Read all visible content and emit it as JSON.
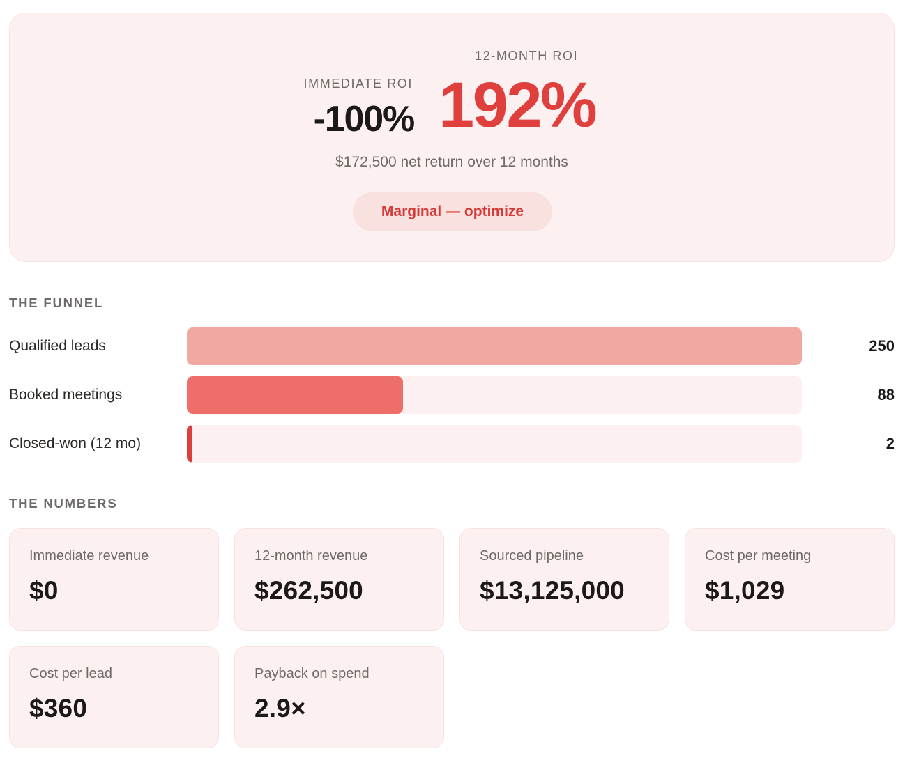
{
  "roi": {
    "immediate_label": "IMMEDIATE ROI",
    "immediate_value": "-100%",
    "twelve_month_label": "12-MONTH ROI",
    "twelve_month_value": "192%",
    "net_return_text": "$172,500 net return over 12 months",
    "status_badge": "Marginal — optimize",
    "accent_color": "#e0403d"
  },
  "funnel": {
    "heading": "THE FUNNEL",
    "max_value": 250,
    "rows": [
      {
        "label": "Qualified leads",
        "value": "250",
        "fraction": 1.0,
        "color": "#f1a7a2"
      },
      {
        "label": "Booked meetings",
        "value": "88",
        "fraction": 0.352,
        "color": "#ee6f69"
      },
      {
        "label": "Closed-won (12 mo)",
        "value": "2",
        "fraction": 0.008,
        "color": "#d9403b"
      }
    ]
  },
  "numbers": {
    "heading": "THE NUMBERS",
    "cards": [
      {
        "label": "Immediate revenue",
        "value": "$0"
      },
      {
        "label": "12-month revenue",
        "value": "$262,500"
      },
      {
        "label": "Sourced pipeline",
        "value": "$13,125,000"
      },
      {
        "label": "Cost per meeting",
        "value": "$1,029"
      },
      {
        "label": "Cost per lead",
        "value": "$360"
      },
      {
        "label": "Payback on spend",
        "value": "2.9×"
      }
    ]
  }
}
